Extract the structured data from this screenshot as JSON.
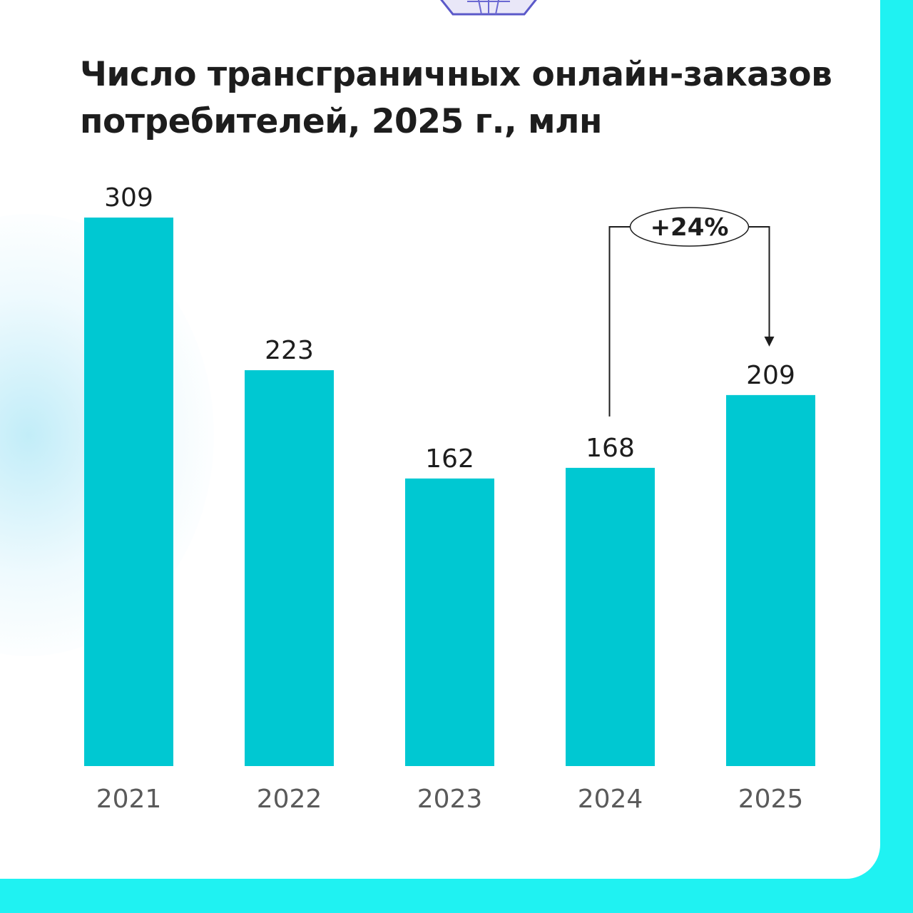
{
  "colors": {
    "bar": "#00c8d2",
    "frame": "#1ff2f2",
    "text": "#1d1d1d",
    "axis_text": "#5a5a5a"
  },
  "chart_data": {
    "type": "bar",
    "title": "Число трансграничных онлайн-заказов потребителей, 2025 г., млн",
    "categories": [
      "2021",
      "2022",
      "2023",
      "2024",
      "2025"
    ],
    "values": [
      309,
      223,
      162,
      168,
      209
    ],
    "data_labels": [
      "309",
      "223",
      "162",
      "168",
      "209"
    ],
    "xlabel": "",
    "ylabel": "",
    "ylim": [
      0,
      309
    ],
    "grid": false,
    "legend": "none",
    "annotation": {
      "text": "+24%",
      "from_category": "2024",
      "to_category": "2025"
    }
  }
}
